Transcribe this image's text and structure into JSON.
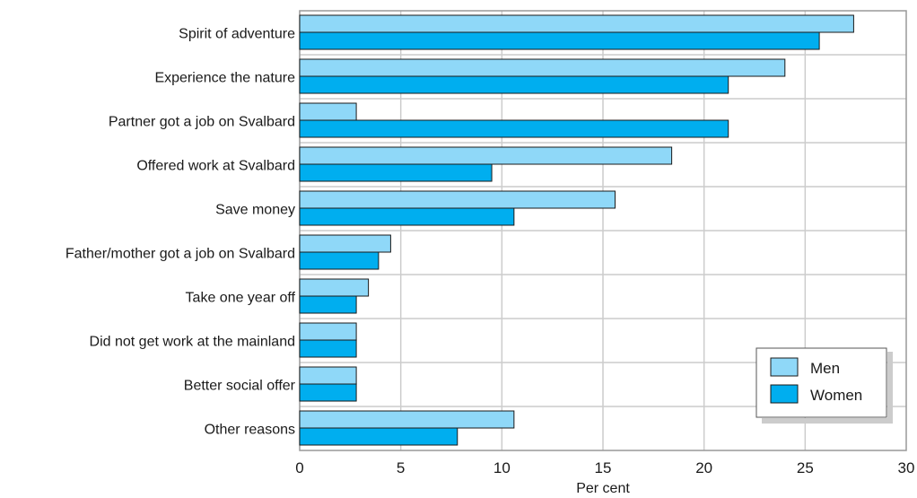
{
  "chart_data": {
    "type": "bar",
    "orientation": "horizontal",
    "categories": [
      "Spirit of adventure",
      "Experience the nature",
      "Partner got a job on Svalbard",
      "Offered work at Svalbard",
      "Save money",
      "Father/mother got a job on Svalbard",
      "Take one year off",
      "Did not get work at the mainland",
      "Better social offer",
      "Other reasons"
    ],
    "series": [
      {
        "name": "Men",
        "color": "#8fd8f8",
        "values": [
          27.4,
          24.0,
          2.8,
          18.4,
          15.6,
          4.5,
          3.4,
          2.8,
          2.8,
          10.6
        ]
      },
      {
        "name": "Women",
        "color": "#00aeef",
        "values": [
          25.7,
          21.2,
          21.2,
          9.5,
          10.6,
          3.9,
          2.8,
          2.8,
          2.8,
          7.8
        ]
      }
    ],
    "xlabel": "Per cent",
    "xlim": [
      0,
      30
    ],
    "xticks": [
      0,
      5,
      10,
      15,
      20,
      25,
      30
    ],
    "grid": true,
    "legend": "bottom-right"
  }
}
